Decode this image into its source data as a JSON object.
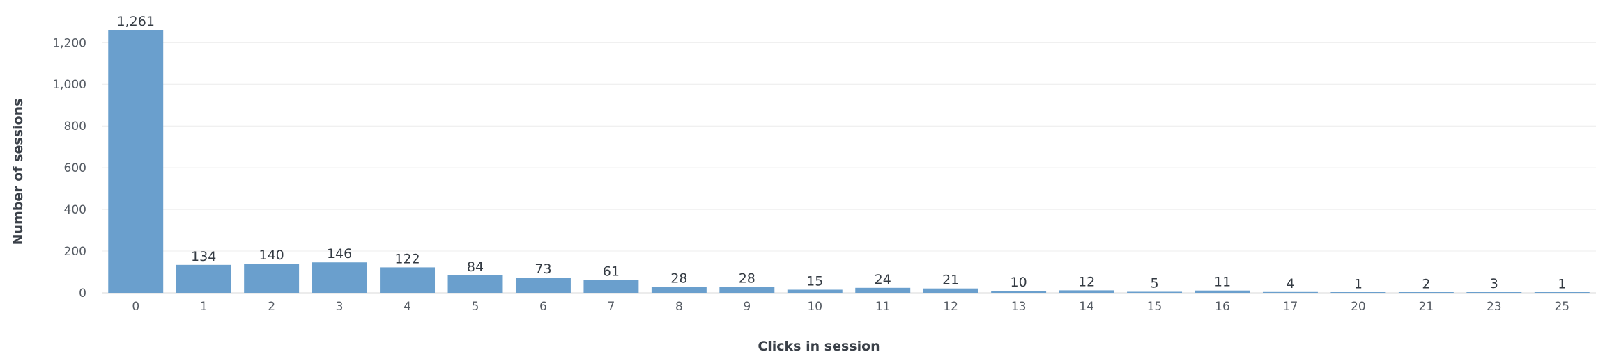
{
  "chart_data": {
    "type": "bar",
    "xlabel": "Clicks in session",
    "ylabel": "Number of sessions",
    "categories": [
      "0",
      "1",
      "2",
      "3",
      "4",
      "5",
      "6",
      "7",
      "8",
      "9",
      "10",
      "11",
      "12",
      "13",
      "14",
      "15",
      "16",
      "17",
      "20",
      "21",
      "23",
      "25"
    ],
    "values": [
      1261,
      134,
      140,
      146,
      122,
      84,
      73,
      61,
      28,
      28,
      15,
      24,
      21,
      10,
      12,
      5,
      11,
      4,
      1,
      2,
      3,
      1
    ],
    "data_labels": [
      "1,261",
      "134",
      "140",
      "146",
      "122",
      "84",
      "73",
      "61",
      "28",
      "28",
      "15",
      "24",
      "21",
      "10",
      "12",
      "5",
      "11",
      "4",
      "1",
      "2",
      "3",
      "1"
    ],
    "y_ticks": [
      0,
      200,
      400,
      600,
      800,
      1000,
      1200
    ],
    "y_tick_labels": [
      "0",
      "200",
      "400",
      "600",
      "800",
      "1,000",
      "1,200"
    ],
    "ylim": [
      0,
      1261
    ],
    "grid": true,
    "bar_color": "#6a9fcd"
  }
}
